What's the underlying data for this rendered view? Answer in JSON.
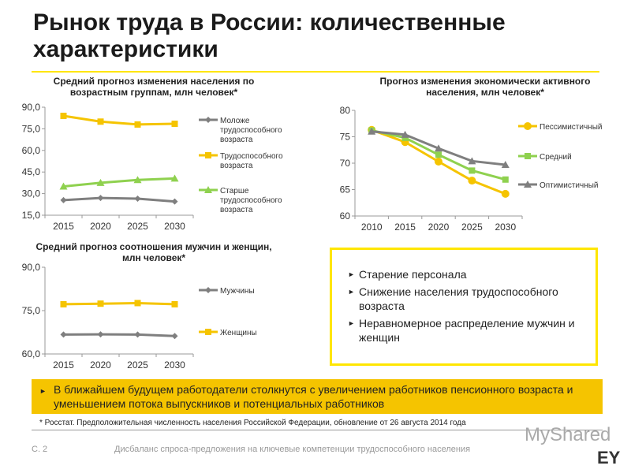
{
  "title": "Рынок труда в России: количественные характеристики",
  "chart_data": [
    {
      "type": "line",
      "title": "Средний прогноз изменения населения по возрастным группам, млн человек*",
      "categories": [
        "2015",
        "2020",
        "2025",
        "2030"
      ],
      "ylim": [
        15,
        90
      ],
      "yticks": [
        "15,0",
        "30,0",
        "45,0",
        "60,0",
        "75,0",
        "90,0"
      ],
      "legend": "right",
      "series": [
        {
          "name": "Моложе трудоспособного возраста",
          "values": [
            25.5,
            27,
            26.5,
            24.5
          ],
          "color": "#7f7f7f",
          "marker": "diamond"
        },
        {
          "name": "Трудоспособного возраста",
          "values": [
            84,
            80,
            78,
            78.5
          ],
          "color": "#f5c400",
          "marker": "square"
        },
        {
          "name": "Старше трудоспособного возраста",
          "values": [
            35,
            37.5,
            39.5,
            40.5
          ],
          "color": "#8fd14f",
          "marker": "triangle"
        }
      ]
    },
    {
      "type": "line",
      "title": "Прогноз изменения экономически активного населения, млн человек*",
      "categories": [
        "2010",
        "2015",
        "2020",
        "2025",
        "2030"
      ],
      "ylim": [
        60,
        80
      ],
      "yticks": [
        "60",
        "65",
        "70",
        "75",
        "80"
      ],
      "legend": "right",
      "series": [
        {
          "name": "Пессимистичный",
          "values": [
            76.3,
            74,
            70.3,
            66.7,
            64.2
          ],
          "color": "#f5c400",
          "marker": "circle"
        },
        {
          "name": "Средний",
          "values": [
            76.2,
            74.8,
            71.6,
            68.6,
            66.9
          ],
          "color": "#8fd14f",
          "marker": "square"
        },
        {
          "name": "Оптимистичный",
          "values": [
            76,
            75.4,
            72.8,
            70.4,
            69.7
          ],
          "color": "#7f7f7f",
          "marker": "triangle"
        }
      ]
    },
    {
      "type": "line",
      "title": "Средний прогноз соотношения мужчин и женщин, млн человек*",
      "categories": [
        "2015",
        "2020",
        "2025",
        "2030"
      ],
      "ylim": [
        60,
        90
      ],
      "yticks": [
        "60,0",
        "75,0",
        "90,0"
      ],
      "legend": "right",
      "series": [
        {
          "name": "Мужчины",
          "values": [
            66.7,
            66.8,
            66.7,
            66.2
          ],
          "color": "#7f7f7f",
          "marker": "diamond"
        },
        {
          "name": "Женщины",
          "values": [
            77.2,
            77.4,
            77.6,
            77.2
          ],
          "color": "#f5c400",
          "marker": "square"
        }
      ]
    }
  ],
  "box": {
    "items": [
      "Старение персонала",
      "Снижение населения трудоспособного возраста",
      "Неравномерное распределение мужчин и женщин"
    ]
  },
  "banner": "В ближайшем будущем работодатели столкнутся с увеличением работников пенсионного возраста и уменьшением потока выпускников и потенциальных работников",
  "footnote": "* Росстат. Предположительная численность населения Российской Федерации, обновление от 26 августа 2014 года",
  "footer": {
    "page": "С. 2",
    "text": "Дисбаланс спроса-предложения на ключевые компетенции трудоспособного населения",
    "logo": "EY",
    "watermark": "MyShared"
  },
  "colors": {
    "accent": "#ffe600",
    "banner": "#f5c400"
  }
}
